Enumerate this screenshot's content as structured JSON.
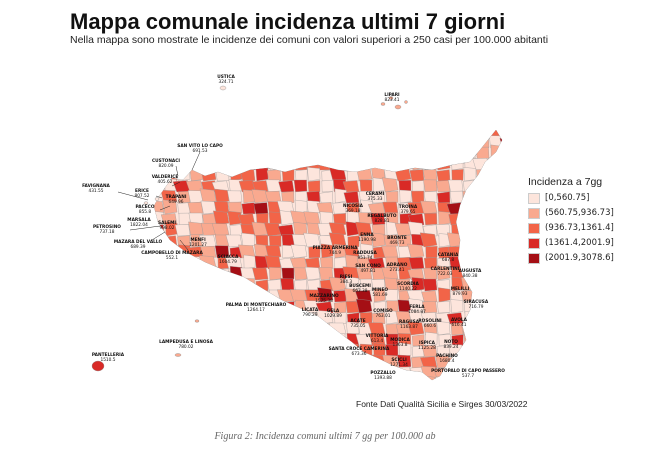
{
  "title": "Mappa comunale incidenza ultimi 7 giorni",
  "subtitle": "Nella mappa sono mostrate le incidenze dei comuni con valori superiori a 250 casi per 100.000 abitanti",
  "legend": {
    "title": "Incidenza a 7gg",
    "classes": [
      {
        "label": "[0,560.75]",
        "color": "#fde5dc"
      },
      {
        "label": "(560.75,936.73]",
        "color": "#f9a98f"
      },
      {
        "label": "(936.73,1361.4]",
        "color": "#f26448"
      },
      {
        "label": "(1361.4,2001.9]",
        "color": "#d92a26"
      },
      {
        "label": "(2001.9,3078.6]",
        "color": "#a50f15"
      }
    ],
    "placement": "right"
  },
  "source": "Fonte Dati Qualità Sicilia e Sirges 30/03/2022",
  "caption": "Figura 2: Incidenza comuni ultimi 7 gg per 100.000 ab",
  "municipality_labels": [
    {
      "name": "USTICA",
      "value": "324.71"
    },
    {
      "name": "LIPARI",
      "value": "823.41"
    },
    {
      "name": "SAN VITO LO CAPO",
      "value": "691.53"
    },
    {
      "name": "CUSTONACI",
      "value": "820.09"
    },
    {
      "name": "VALDERICE",
      "value": "405.62"
    },
    {
      "name": "FAVIGNANA",
      "value": "431.55"
    },
    {
      "name": "ERICE",
      "value": "807.52"
    },
    {
      "name": "TRAPANI",
      "value": "649.96"
    },
    {
      "name": "PACECO",
      "value": "855.8"
    },
    {
      "name": "MARSALA",
      "value": "1822.04"
    },
    {
      "name": "SALEMI",
      "value": "998.02"
    },
    {
      "name": "PETROSINO",
      "value": "737.18"
    },
    {
      "name": "MAZARA DEL VALLO",
      "value": "689.39"
    },
    {
      "name": "MENFI",
      "value": "1201.27"
    },
    {
      "name": "CAMPOBELLO DI MAZARA",
      "value": "552.1"
    },
    {
      "name": "SCIACCA",
      "value": "1604.79"
    },
    {
      "name": "NICOSIA",
      "value": "369.18"
    },
    {
      "name": "CERAMI",
      "value": "375.33"
    },
    {
      "name": "TROINA",
      "value": "379.65"
    },
    {
      "name": "ENNA",
      "value": "1190.98"
    },
    {
      "name": "REGALBUTO",
      "value": "828.81"
    },
    {
      "name": "PIAZZA ARMERINA",
      "value": "744.9"
    },
    {
      "name": "BRONTE",
      "value": "469.73"
    },
    {
      "name": "CATANIA",
      "value": "687.8"
    },
    {
      "name": "RADDUSA",
      "value": "951.74"
    },
    {
      "name": "SAN CONO",
      "value": "497.81"
    },
    {
      "name": "ADRANO",
      "value": "273.41"
    },
    {
      "name": "CARLENTINI",
      "value": "722.03"
    },
    {
      "name": "AUGUSTA",
      "value": "840.38"
    },
    {
      "name": "MELILLI",
      "value": "879.93"
    },
    {
      "name": "MINEO",
      "value": "581.69"
    },
    {
      "name": "BUSCEMI",
      "value": "663.38"
    },
    {
      "name": "SCORDIA",
      "value": "1140.22"
    },
    {
      "name": "RIESI",
      "value": "384.3"
    },
    {
      "name": "SIRACUSA",
      "value": "716.79"
    },
    {
      "name": "MAZZARINO",
      "value": "1575.38"
    },
    {
      "name": "PALMA DI MONTECHIARO",
      "value": "1264.17"
    },
    {
      "name": "LICATA",
      "value": "790.29"
    },
    {
      "name": "GELA",
      "value": "1029.89"
    },
    {
      "name": "COMISO",
      "value": "763.01"
    },
    {
      "name": "FERLA",
      "value": "1084.87"
    },
    {
      "name": "AVOLA",
      "value": "616.41"
    },
    {
      "name": "ACATE",
      "value": "735.05"
    },
    {
      "name": "RAGUSA",
      "value": "1163.87"
    },
    {
      "name": "MODICA",
      "value": "1363.8"
    },
    {
      "name": "VITTORIA",
      "value": "613.4"
    },
    {
      "name": "NOTO",
      "value": "839.24"
    },
    {
      "name": "SANTA CROCE CAMERINA",
      "value": "673.36"
    },
    {
      "name": "ROSOLINI",
      "value": "660.6"
    },
    {
      "name": "ISPICA",
      "value": "1125.28"
    },
    {
      "name": "SCICLI",
      "value": "1271.34"
    },
    {
      "name": "PACHINO",
      "value": "1680.4"
    },
    {
      "name": "POZZALLO",
      "value": "1393.88"
    },
    {
      "name": "PORTOPALO DI CAPO PASSERO",
      "value": "537.7"
    },
    {
      "name": "LAMPEDUSA E LINOSA",
      "value": "780.02"
    },
    {
      "name": "PANTELLERIA",
      "value": "1510.5"
    }
  ]
}
